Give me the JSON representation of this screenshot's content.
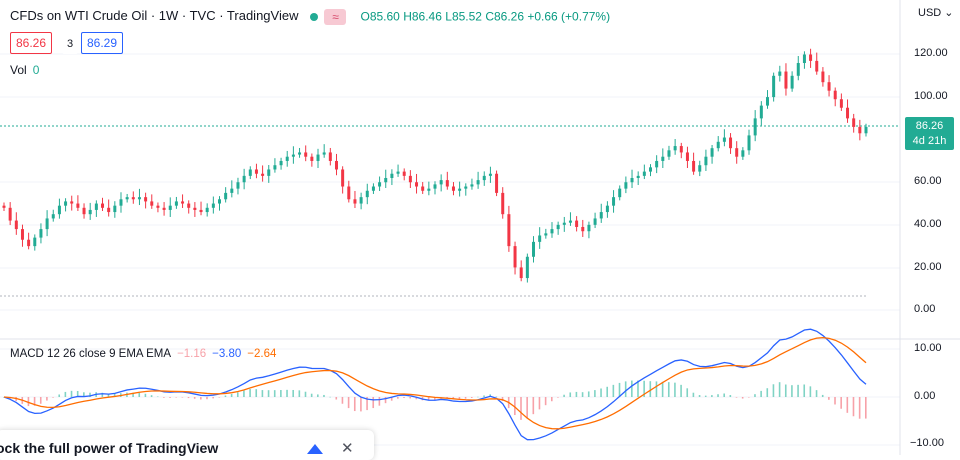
{
  "header": {
    "title": "CFDs on WTI Crude Oil · 1W · TVC · TradingView",
    "approx_symbol": "≈",
    "ohlc": {
      "open_label": "O",
      "open": "85.60",
      "high_label": "H",
      "high": "86.46",
      "low_label": "L",
      "low": "85.52",
      "close_label": "C",
      "close": "86.26",
      "change": "+0.66 (+0.77%)"
    }
  },
  "trade": {
    "sell": "86.26",
    "spread": "3",
    "buy": "86.29"
  },
  "volume": {
    "label": "Vol",
    "value": "0"
  },
  "macd": {
    "label": "MACD 12 26 close 9 EMA EMA",
    "hist": "−1.16",
    "macd": "−3.80",
    "signal": "−2.64"
  },
  "axis": {
    "currency": "USD",
    "price_ticks": [
      "120.00",
      "100.00",
      "80.00",
      "60.00",
      "40.00",
      "20.00",
      "0.00"
    ],
    "macd_ticks": [
      "10.00",
      "0.00",
      "−10.00"
    ]
  },
  "last_price": {
    "value": "86.26",
    "countdown": "4d 21h"
  },
  "promo": {
    "text": "ock the full power of TradingView",
    "close_icon": "close-icon",
    "up_icon": "tradingview-arrow-icon"
  },
  "colors": {
    "up": "#22ab94",
    "down": "#f23645",
    "macd": "#2962ff",
    "signal": "#ff6d00"
  },
  "chart_data": {
    "type": "line",
    "series": [
      {
        "name": "CFDs on WTI Crude Oil",
        "y": [
          48,
          42,
          38,
          33,
          30,
          34,
          38,
          43,
          45,
          49,
          51,
          50,
          48,
          45,
          47,
          50,
          48,
          46,
          49,
          52,
          53,
          52,
          53,
          51,
          49,
          48,
          47,
          49,
          51,
          50,
          48,
          47,
          46,
          48,
          50,
          52,
          55,
          57,
          60,
          63,
          66,
          64,
          63,
          66,
          68,
          70,
          72,
          73,
          74,
          72,
          70,
          73,
          74,
          70,
          66,
          58,
          52,
          50,
          53,
          56,
          58,
          60,
          62,
          64,
          65,
          63,
          60,
          58,
          56,
          57,
          59,
          61,
          58,
          56,
          57,
          58,
          59,
          61,
          63,
          64,
          55,
          45,
          30,
          20,
          15,
          25,
          32,
          35,
          36,
          38,
          40,
          41,
          42,
          39,
          37,
          40,
          43,
          46,
          49,
          53,
          57,
          60,
          62,
          63,
          65,
          67,
          70,
          72,
          75,
          77,
          74,
          70,
          65,
          68,
          72,
          76,
          79,
          81,
          76,
          72,
          75,
          82,
          90,
          96,
          100,
          110,
          112,
          104,
          110,
          116,
          120,
          117,
          112,
          107,
          103,
          99,
          95,
          90,
          86,
          83,
          86
        ],
        "markers": "weekly candles"
      },
      {
        "name": "MACD",
        "values": [
          -3.8
        ]
      },
      {
        "name": "Signal",
        "values": [
          -2.64
        ]
      }
    ],
    "ylim": [
      0,
      130
    ],
    "macd_ylim": [
      -10,
      10
    ]
  }
}
